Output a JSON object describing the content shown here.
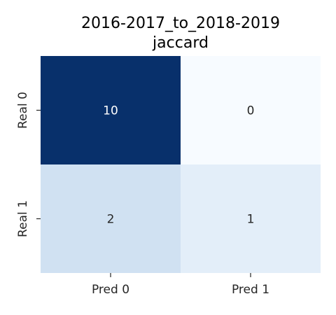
{
  "chart_data": {
    "type": "heatmap",
    "title_lines": [
      "2016-2017_to_2018-2019",
      "jaccard"
    ],
    "x_categories": [
      "Pred 0",
      "Pred 1"
    ],
    "y_categories": [
      "Real 0",
      "Real 1"
    ],
    "values": [
      [
        10,
        0
      ],
      [
        2,
        1
      ]
    ],
    "colorbar": false,
    "colormap": "Blues",
    "cell_colors": [
      [
        "#08306b",
        "#f7fbff"
      ],
      [
        "#d0e1f2",
        "#e3eef9"
      ]
    ],
    "text_colors": [
      [
        "#ffffff",
        "#262626"
      ],
      [
        "#262626",
        "#262626"
      ]
    ]
  }
}
